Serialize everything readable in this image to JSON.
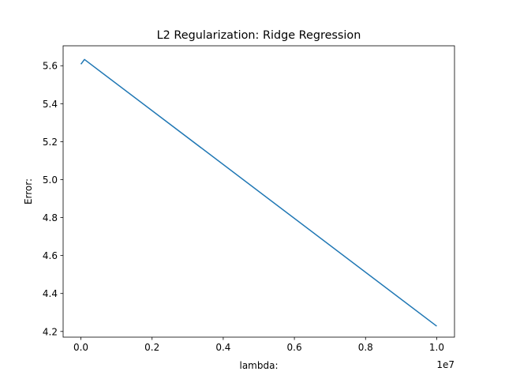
{
  "chart_data": {
    "type": "line",
    "title": "L2 Regularization: Ridge Regression",
    "xlabel": "lambda:",
    "ylabel": "Error:",
    "x_offset_label": "1e7",
    "xlim": [
      -500000,
      10500000
    ],
    "ylim": [
      4.17,
      5.705
    ],
    "x_ticks": [
      0,
      2000000,
      4000000,
      6000000,
      8000000,
      10000000
    ],
    "x_tick_labels": [
      "0.0",
      "0.2",
      "0.4",
      "0.6",
      "0.8",
      "1.0"
    ],
    "y_ticks": [
      4.2,
      4.4,
      4.6,
      4.8,
      5.0,
      5.2,
      5.4,
      5.6
    ],
    "y_tick_labels": [
      "4.2",
      "4.4",
      "4.6",
      "4.8",
      "5.0",
      "5.2",
      "5.4",
      "5.6"
    ],
    "grid": false,
    "series": [
      {
        "color": "#1f77b4",
        "x": [
          0,
          100000,
          10000000
        ],
        "y": [
          5.608,
          5.633,
          4.228
        ]
      }
    ]
  }
}
